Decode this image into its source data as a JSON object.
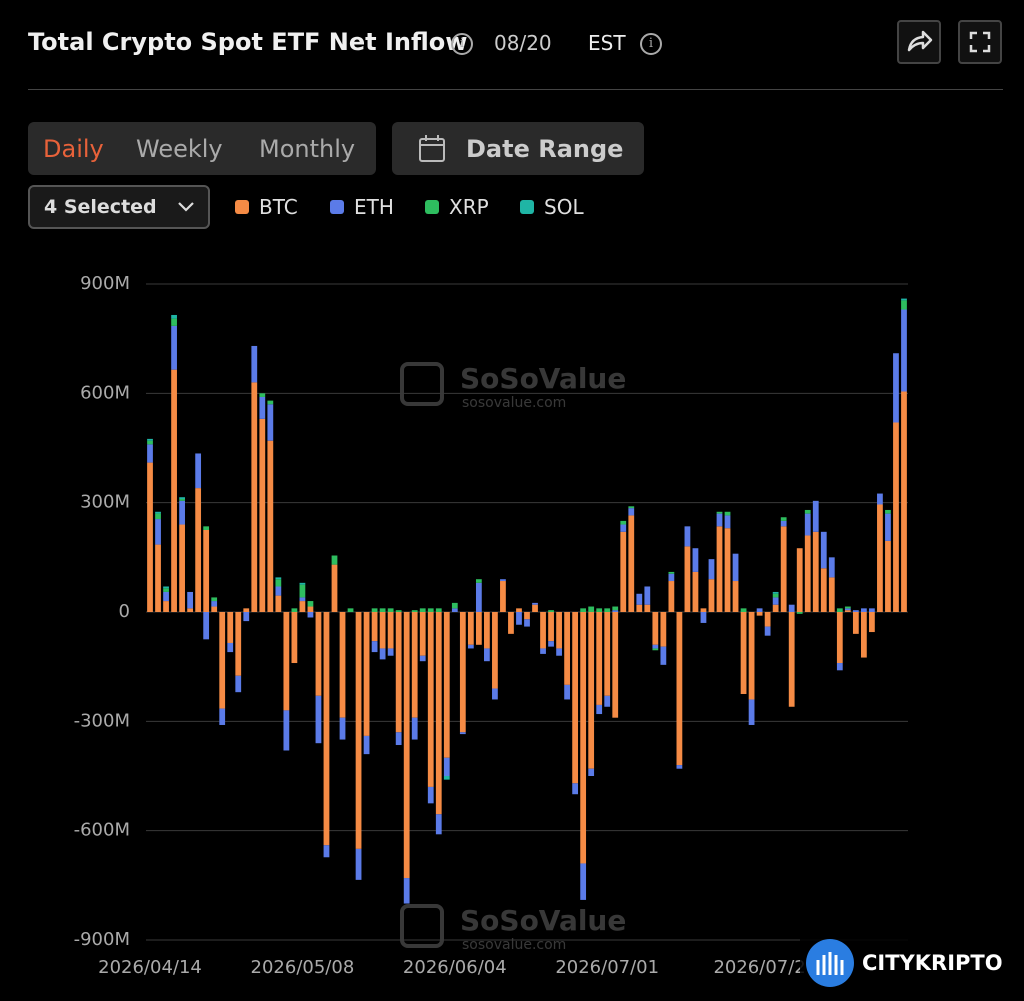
{
  "header": {
    "title": "Total Crypto Spot ETF Net Inflow",
    "date": "08/20",
    "timezone": "EST"
  },
  "tabs": [
    "Daily",
    "Weekly",
    "Monthly"
  ],
  "date_range": "Date Range",
  "selector": "4 Selected",
  "watermark": "SoSoValue",
  "watermark_url": "sosovalue.com",
  "logo": "CITYKRIPTO",
  "chart_data": {
    "type": "bar",
    "stacked": true,
    "grid": true,
    "categories": [
      "2026/04/14",
      null,
      null,
      null,
      null,
      null,
      null,
      null,
      null,
      null,
      null,
      null,
      null,
      null,
      null,
      null,
      null,
      null,
      null,
      "2026/05/08",
      null,
      null,
      null,
      null,
      null,
      null,
      null,
      null,
      null,
      null,
      null,
      null,
      null,
      null,
      null,
      null,
      null,
      null,
      "2026/06/04",
      null,
      null,
      null,
      null,
      null,
      null,
      null,
      null,
      null,
      null,
      null,
      null,
      null,
      null,
      null,
      null,
      null,
      null,
      "2026/07/01",
      null,
      null,
      null,
      null,
      null,
      null,
      null,
      null,
      null,
      null,
      null,
      null,
      null,
      null,
      null,
      null,
      null,
      null,
      "2026/07/2",
      null,
      null,
      null,
      null,
      null,
      null,
      null,
      null,
      null,
      null,
      null,
      null,
      null,
      null,
      null,
      null,
      null,
      null
    ],
    "ylim": [
      -900,
      900
    ],
    "yticks": [
      {
        "value": -900,
        "label": "-900M"
      },
      {
        "value": -600,
        "label": "-600M"
      },
      {
        "value": -300,
        "label": "-300M"
      },
      0,
      {
        "value": 300,
        "label": "300M"
      },
      {
        "value": 600,
        "label": "600M"
      },
      {
        "value": 900,
        "label": "900M"
      }
    ],
    "series": [
      {
        "name": "BTC",
        "color": "#f58b45",
        "values": [
          410,
          185,
          30,
          665,
          240,
          10,
          340,
          225,
          15,
          -265,
          -85,
          -175,
          10,
          630,
          530,
          470,
          45,
          -270,
          -140,
          30,
          15,
          -230,
          -640,
          130,
          -290,
          0,
          -650,
          -340,
          -80,
          -100,
          -100,
          -330,
          -730,
          -290,
          -120,
          -480,
          -555,
          -400,
          0,
          -330,
          -90,
          -90,
          -100,
          -210,
          85,
          -60,
          10,
          -20,
          20,
          -100,
          -80,
          -100,
          -200,
          -470,
          -690,
          -430,
          -255,
          -230,
          -290,
          220,
          265,
          20,
          20,
          -90,
          -95,
          85,
          -420,
          180,
          110,
          10,
          90,
          235,
          230,
          85,
          -225,
          -240,
          -10,
          -40,
          20,
          235,
          -260,
          175,
          210,
          220,
          120,
          95,
          -140,
          5,
          -60,
          -125,
          -55,
          295,
          195,
          520,
          605
        ]
      },
      {
        "name": "ETH",
        "color": "#5b7be8",
        "values": [
          50,
          70,
          25,
          120,
          65,
          45,
          95,
          -75,
          15,
          -45,
          -25,
          -45,
          -25,
          100,
          60,
          100,
          25,
          -110,
          0,
          10,
          -15,
          -130,
          -33,
          0,
          -60,
          0,
          -85,
          -50,
          -30,
          -30,
          -20,
          -35,
          -70,
          -60,
          -15,
          -45,
          -55,
          -50,
          10,
          -5,
          -10,
          80,
          -35,
          -30,
          5,
          0,
          -35,
          -20,
          5,
          -15,
          -15,
          -20,
          -40,
          -30,
          -100,
          -20,
          -25,
          -30,
          5,
          20,
          20,
          30,
          50,
          -10,
          -50,
          20,
          -10,
          55,
          65,
          -30,
          55,
          35,
          35,
          75,
          0,
          -70,
          10,
          -25,
          20,
          15,
          20,
          0,
          60,
          85,
          100,
          55,
          -20,
          5,
          5,
          10,
          10,
          30,
          75,
          190,
          225
        ]
      },
      {
        "name": "XRP",
        "color": "#2ebd5f",
        "values": [
          10,
          15,
          10,
          20,
          5,
          0,
          0,
          10,
          10,
          0,
          0,
          0,
          0,
          0,
          10,
          10,
          20,
          0,
          10,
          35,
          15,
          0,
          0,
          25,
          0,
          10,
          0,
          0,
          10,
          10,
          10,
          5,
          0,
          5,
          10,
          10,
          10,
          0,
          15,
          0,
          0,
          10,
          0,
          0,
          0,
          0,
          0,
          0,
          0,
          0,
          5,
          0,
          0,
          0,
          10,
          15,
          10,
          10,
          10,
          10,
          5,
          0,
          0,
          -5,
          0,
          5,
          0,
          0,
          0,
          0,
          0,
          5,
          10,
          0,
          10,
          0,
          0,
          0,
          10,
          10,
          0,
          -5,
          10,
          0,
          0,
          0,
          10,
          5,
          0,
          0,
          0,
          0,
          10,
          0,
          25
        ]
      },
      {
        "name": "SOL",
        "color": "#1fb5a5",
        "values": [
          5,
          5,
          5,
          10,
          5,
          0,
          0,
          0,
          0,
          0,
          0,
          0,
          0,
          0,
          0,
          0,
          5,
          0,
          0,
          5,
          0,
          0,
          0,
          0,
          0,
          0,
          0,
          0,
          0,
          0,
          0,
          0,
          0,
          0,
          0,
          0,
          0,
          -10,
          0,
          0,
          0,
          0,
          0,
          0,
          0,
          0,
          0,
          0,
          0,
          0,
          0,
          0,
          0,
          0,
          0,
          0,
          0,
          0,
          0,
          0,
          0,
          0,
          0,
          0,
          0,
          0,
          0,
          0,
          0,
          0,
          0,
          0,
          0,
          0,
          0,
          0,
          0,
          0,
          5,
          0,
          0,
          0,
          0,
          0,
          0,
          0,
          0,
          0,
          0,
          0,
          0,
          0,
          0,
          0,
          5
        ]
      }
    ]
  }
}
